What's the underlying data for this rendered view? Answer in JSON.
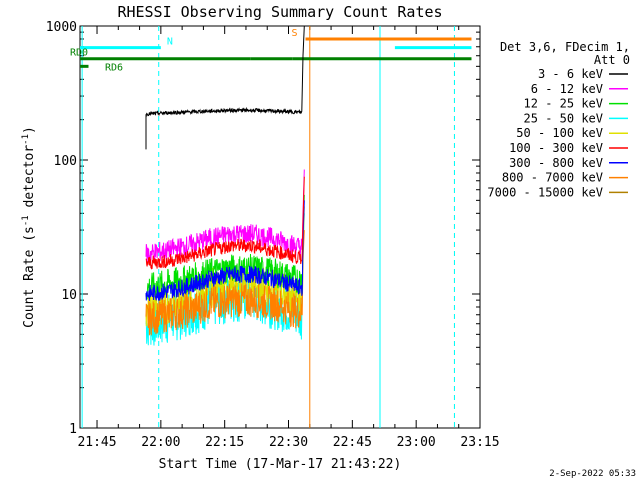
{
  "chart_data": {
    "type": "line",
    "title": "RHESSI Observing Summary Count Rates",
    "xlabel": "Start Time (17-Mar-17 21:43:22)",
    "ylabel": "Count Rate (s",
    "ylabel_sup": "-1",
    "ylabel_tail": " detector",
    "ylabel_sup2": "-1",
    "ylabel_close": ")",
    "yscale": "log",
    "ylim": [
      1,
      1000
    ],
    "yticks": [
      1,
      10,
      100,
      1000
    ],
    "ytick_labels": [
      "1",
      "10",
      "100",
      "1000"
    ],
    "xlim_min": [
      -2,
      92
    ],
    "xticks_min": [
      2,
      17,
      32,
      47,
      62,
      77,
      92
    ],
    "xtick_labels": [
      "21:45",
      "22:00",
      "22:15",
      "22:30",
      "22:45",
      "23:00",
      "23:15"
    ],
    "legend_header": [
      "Det 3,6, FDecim 1,",
      "Att 0"
    ],
    "series": [
      {
        "name": "3 - 6 keV",
        "color": "#000000",
        "values": [
          220,
          225,
          228,
          232,
          235,
          235,
          232,
          228,
          225,
          225,
          230,
          250,
          600,
          1000
        ]
      },
      {
        "name": "6 - 12 keV",
        "color": "#ff00ff",
        "values": [
          20,
          21,
          23,
          26,
          28,
          28,
          26,
          23,
          21,
          20,
          22,
          40,
          85
        ]
      },
      {
        "name": "12 - 25 keV",
        "color": "#00e000",
        "values": [
          11,
          12,
          13,
          14.5,
          15.5,
          15.5,
          14.5,
          13,
          12,
          11,
          12,
          28,
          55
        ]
      },
      {
        "name": "25 - 50 keV",
        "color": "#00ffff",
        "values": [
          6,
          6.5,
          7.5,
          8.5,
          9.5,
          9.5,
          8.5,
          7.5,
          6.5,
          6,
          6.5,
          20,
          40
        ]
      },
      {
        "name": "50 - 100 keV",
        "color": "#e0e000",
        "values": [
          8,
          8.5,
          9.5,
          11,
          12,
          12,
          11,
          9.5,
          8.5,
          8,
          8.5,
          22,
          45
        ]
      },
      {
        "name": "100 - 300 keV",
        "color": "#ff0000",
        "values": [
          17,
          17.5,
          19,
          21,
          23,
          23,
          21,
          19,
          17.5,
          17,
          18,
          35,
          75
        ]
      },
      {
        "name": "300 - 800 keV",
        "color": "#0000ff",
        "values": [
          10,
          10.5,
          11.5,
          13,
          14,
          14,
          13,
          11.5,
          10.5,
          10,
          11,
          25,
          50
        ]
      },
      {
        "name": "800 - 7000 keV",
        "color": "#ff8000",
        "values": [
          6.5,
          7,
          7.5,
          8.5,
          9,
          9,
          8.5,
          7.5,
          7,
          6.5,
          7,
          18,
          30
        ]
      },
      {
        "name": "7000 - 15000 keV",
        "color": "#b08000",
        "values": []
      }
    ],
    "x_minutes": [
      0,
      5,
      10,
      15,
      20,
      25,
      30,
      35,
      40,
      45,
      48,
      49.5,
      50.5,
      51
    ],
    "x_start_min": 13.5,
    "flag_bars": [
      {
        "label": "N",
        "color": "#00ffff",
        "segments": [
          [
            -2,
            17
          ]
        ],
        "level": 690
      },
      {
        "label": "RD0",
        "color": "#008000",
        "segments": [
          [
            -2,
            38
          ],
          [
            38,
            48
          ],
          [
            48,
            90
          ]
        ],
        "level": 570
      },
      {
        "label": "RD6",
        "color": "#008000",
        "segments": [
          [
            -2,
            0
          ]
        ],
        "level": 500
      },
      {
        "label": "S",
        "color": "#ff8000",
        "segments": [
          [
            51,
            90
          ]
        ],
        "level": 800
      },
      {
        "label": "",
        "color": "#00ffff",
        "segments": [
          [
            72,
            90
          ]
        ],
        "level": 690
      }
    ],
    "vlines": [
      {
        "x": -1.5,
        "color": "#00ffff",
        "style": "solid"
      },
      {
        "x": 16.5,
        "color": "#00ffff",
        "style": "dashed"
      },
      {
        "x": 52,
        "color": "#ff8000",
        "style": "solid"
      },
      {
        "x": 68.5,
        "color": "#00ffff",
        "style": "solid"
      },
      {
        "x": 86,
        "color": "#ff8000",
        "style": "dashed"
      },
      {
        "x": 86,
        "color": "#00ffff",
        "style": "dashed"
      }
    ],
    "footer": "2-Sep-2022 05:33"
  }
}
